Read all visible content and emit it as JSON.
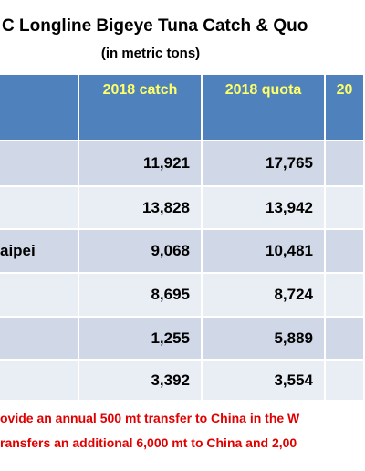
{
  "title": "C Longline Bigeye Tuna Catch & Quo",
  "subtitle": "(in metric tons)",
  "table": {
    "header": [
      "2018 catch",
      "2018 quota",
      "20"
    ],
    "rows": [
      {
        "values": [
          "11,921",
          "17,765"
        ]
      },
      {
        "values": [
          "13,828",
          "13,942"
        ]
      },
      {
        "label": "aipei",
        "values": [
          "9,068",
          "10,481"
        ]
      },
      {
        "values": [
          "8,695",
          "8,724"
        ]
      },
      {
        "values": [
          "1,255",
          "5,889"
        ]
      },
      {
        "values": [
          "3,392",
          "3,554"
        ]
      }
    ]
  },
  "notes": [
    "ovide an annual 500 mt transfer to China in the W",
    "ransfers an additional 6,000 mt to China and 2,00"
  ]
}
